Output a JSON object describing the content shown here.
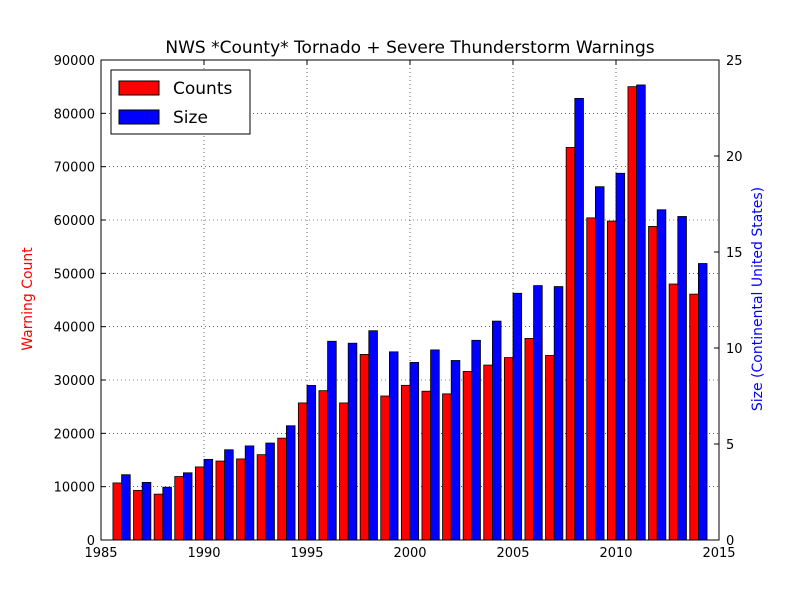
{
  "chart_data": {
    "type": "bar",
    "title": "NWS *County* Tornado + Severe Thunderstorm Warnings",
    "x": [
      1986,
      1987,
      1988,
      1989,
      1990,
      1991,
      1992,
      1993,
      1994,
      1995,
      1996,
      1997,
      1998,
      1999,
      2000,
      2001,
      2002,
      2003,
      2004,
      2005,
      2006,
      2007,
      2008,
      2009,
      2010,
      2011,
      2012,
      2013,
      2014
    ],
    "xlim": [
      1985,
      2015
    ],
    "xticks": [
      "1985",
      "1990",
      "1995",
      "2000",
      "2005",
      "2010",
      "2015"
    ],
    "ylabel_left": "Warning Count",
    "ylim_left": [
      0,
      90000
    ],
    "yticks_left": [
      "0",
      "10000",
      "20000",
      "30000",
      "40000",
      "50000",
      "60000",
      "70000",
      "80000",
      "90000"
    ],
    "ylabel_right": "Size (Continental United States)",
    "ylim_right": [
      0,
      25
    ],
    "yticks_right": [
      "0",
      "5",
      "10",
      "15",
      "20",
      "25"
    ],
    "grid": true,
    "legend_position": "top-left",
    "series": [
      {
        "name": "Counts",
        "axis": "left",
        "color": "#ff0000",
        "values": [
          10700,
          9300,
          8600,
          11900,
          13700,
          14800,
          15200,
          16000,
          19100,
          25700,
          28000,
          25700,
          34800,
          27000,
          29000,
          27900,
          27400,
          31600,
          32800,
          34200,
          37800,
          34600,
          73600,
          60400,
          59800,
          85000,
          58800,
          48000,
          46100
        ]
      },
      {
        "name": "Size",
        "axis": "right",
        "color": "#0000ff",
        "values": [
          3.4,
          3.0,
          2.75,
          3.5,
          4.2,
          4.7,
          4.9,
          5.05,
          5.95,
          8.05,
          10.35,
          10.25,
          10.9,
          9.8,
          9.25,
          9.9,
          9.35,
          10.4,
          11.4,
          12.85,
          13.25,
          13.2,
          23.0,
          18.4,
          19.1,
          23.7,
          17.2,
          16.85,
          14.4
        ]
      }
    ]
  }
}
